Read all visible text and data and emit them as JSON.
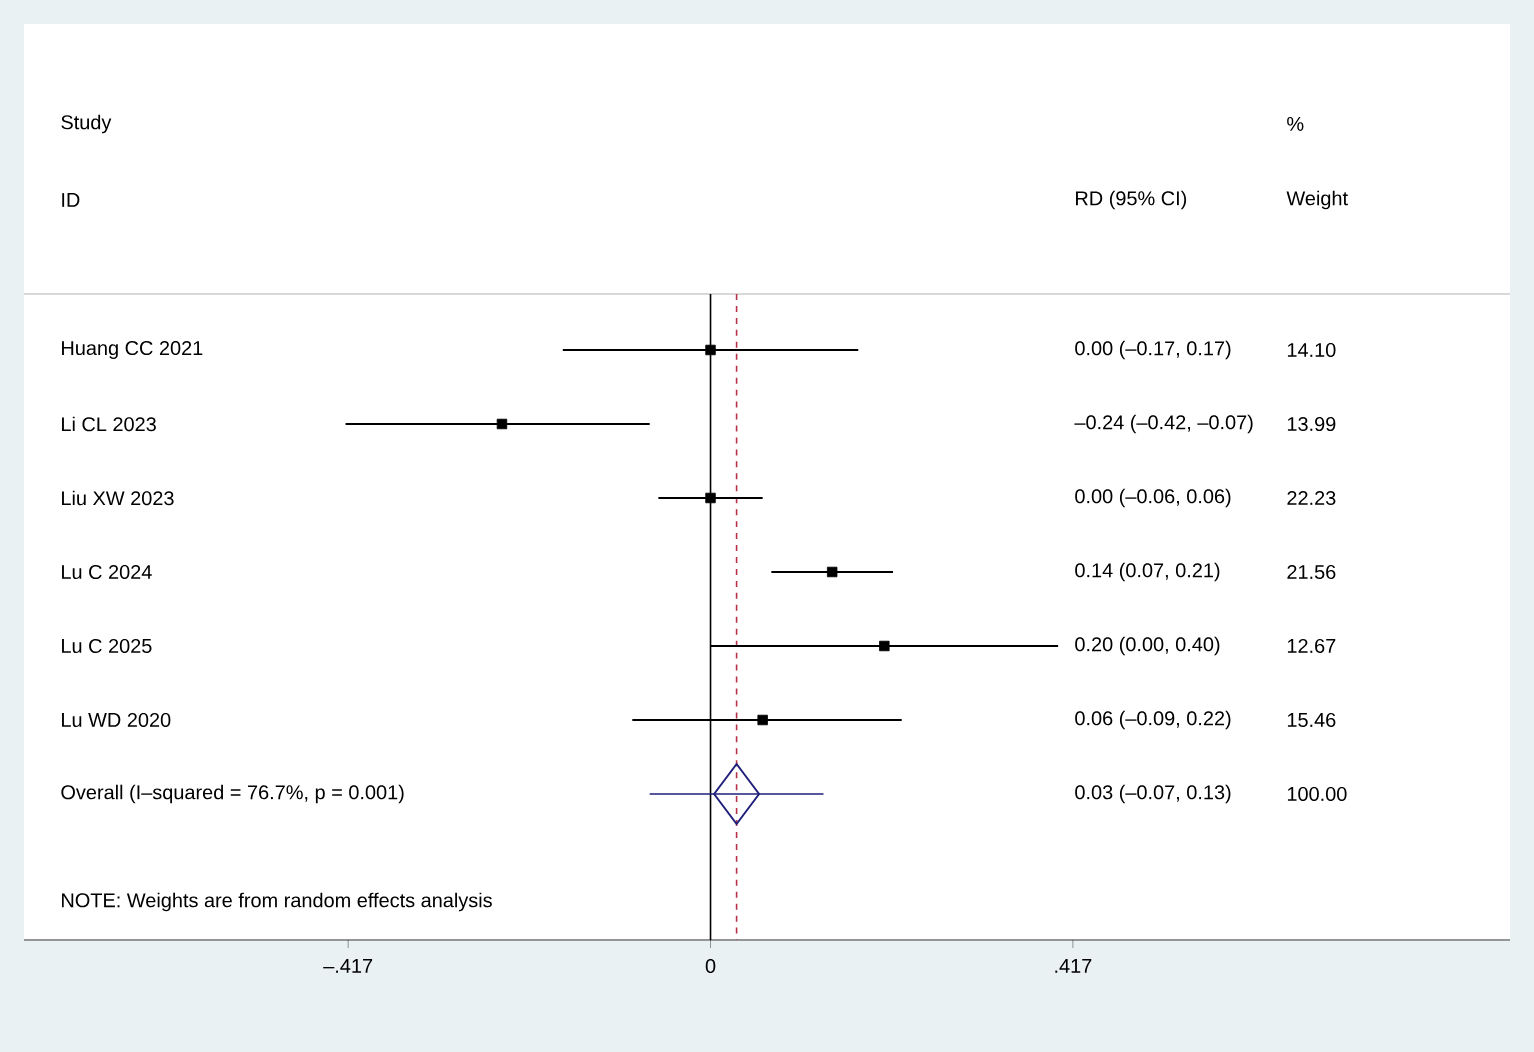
{
  "chart_data": {
    "type": "scatter",
    "orientation": "horizontal",
    "categories": [
      "Huang CC 2021",
      "Li CL 2023",
      "Liu XW 2023",
      "Lu C 2024",
      "Lu C 2025",
      "Lu WD 2020",
      "Overall  (I–squared = 76.7%, p = 0.001)"
    ],
    "series": [
      {
        "marker": "square",
        "color": "#000000",
        "values": [
          0.0,
          -0.24,
          0.0,
          0.14,
          0.2,
          0.06,
          null
        ],
        "errors": [
          [
            -0.17,
            0.17
          ],
          [
            -0.42,
            -0.07
          ],
          [
            -0.06,
            0.06
          ],
          [
            0.07,
            0.21
          ],
          [
            0.0,
            0.4
          ],
          [
            -0.09,
            0.22
          ],
          null
        ]
      },
      {
        "marker": "diamond",
        "color": "#1f1f7a",
        "values": [
          null,
          null,
          null,
          null,
          null,
          null,
          0.03
        ],
        "errors": [
          null,
          null,
          null,
          null,
          null,
          null,
          [
            -0.07,
            0.13
          ]
        ]
      }
    ],
    "xlim": [
      -0.79,
      0.92
    ],
    "xticks": [
      {
        "value": -0.417,
        "label": "–.417"
      },
      0,
      {
        "value": 0.417,
        "label": ".417"
      }
    ],
    "ref_lines": [
      {
        "axis": "x",
        "value": 0,
        "color": "#000000",
        "line_style": "solid"
      },
      {
        "axis": "x",
        "value": 0.03,
        "color": "#b5324a",
        "line_style": "dashed"
      }
    ],
    "annotations": [
      "Study",
      "ID",
      "RD (95% CI)",
      "%",
      "Weight",
      "0.00 (–0.17, 0.17)",
      "–0.24 (–0.42, –0.07)",
      "0.00 (–0.06, 0.06)",
      "0.14 (0.07, 0.21)",
      "0.20 (0.00, 0.40)",
      "0.06 (–0.09, 0.22)",
      "0.03 (–0.07, 0.13)",
      "14.10",
      "13.99",
      "22.23",
      "21.56",
      "12.67",
      "15.46",
      "100.00",
      "NOTE: Weights are from random effects analysis"
    ],
    "grid": false
  }
}
